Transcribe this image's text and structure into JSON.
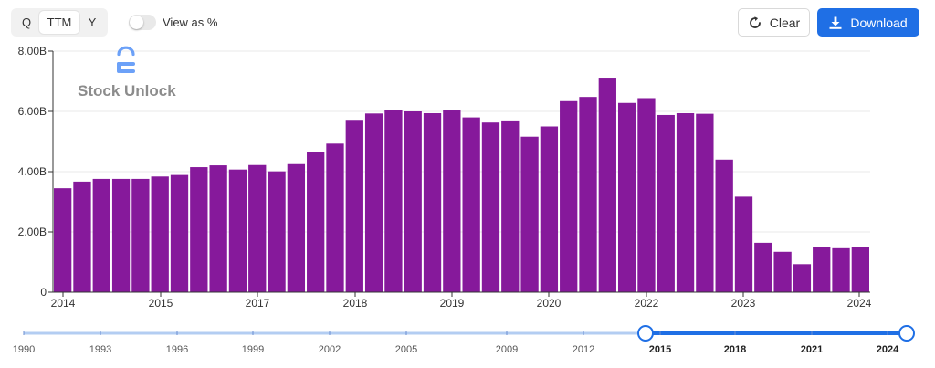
{
  "period_tabs": [
    {
      "label": "Q",
      "selected": false
    },
    {
      "label": "TTM",
      "selected": true
    },
    {
      "label": "Y",
      "selected": false
    }
  ],
  "toggle": {
    "label": "View as %",
    "on": false
  },
  "buttons": {
    "clear_label": "Clear",
    "download_label": "Download"
  },
  "watermark": {
    "text": "Stock Unlock"
  },
  "colors": {
    "bar": "#86199b",
    "accent": "#1f6fe5",
    "grid": "#e8e8e8"
  },
  "chart_data": {
    "type": "bar",
    "title": "",
    "xlabel": "",
    "ylabel": "",
    "ylim": [
      0,
      8
    ],
    "y_unit": "B",
    "y_ticks": [
      "0",
      "2.00B",
      "4.00B",
      "6.00B",
      "8.00B"
    ],
    "x_ticks": [
      "2014",
      "2015",
      "2017",
      "2018",
      "2019",
      "2020",
      "2022",
      "2023",
      "2024"
    ],
    "grid": true,
    "values": [
      3.45,
      3.67,
      3.76,
      3.76,
      3.76,
      3.84,
      3.89,
      4.15,
      4.21,
      4.07,
      4.22,
      4.01,
      4.25,
      4.66,
      4.93,
      5.72,
      5.93,
      6.06,
      6.0,
      5.94,
      6.03,
      5.8,
      5.63,
      5.7,
      5.16,
      5.5,
      6.34,
      6.48,
      7.12,
      6.28,
      6.44,
      5.88,
      5.94,
      5.92,
      4.4,
      3.17,
      1.64,
      1.34,
      0.93,
      1.49,
      1.46,
      1.49
    ]
  },
  "range_slider": {
    "labels": [
      "1990",
      "1993",
      "1996",
      "1999",
      "2002",
      "2005",
      "2009",
      "2012",
      "2015",
      "2018",
      "2021",
      "2024"
    ],
    "selected_start": "2015",
    "selected_end": "2024"
  }
}
